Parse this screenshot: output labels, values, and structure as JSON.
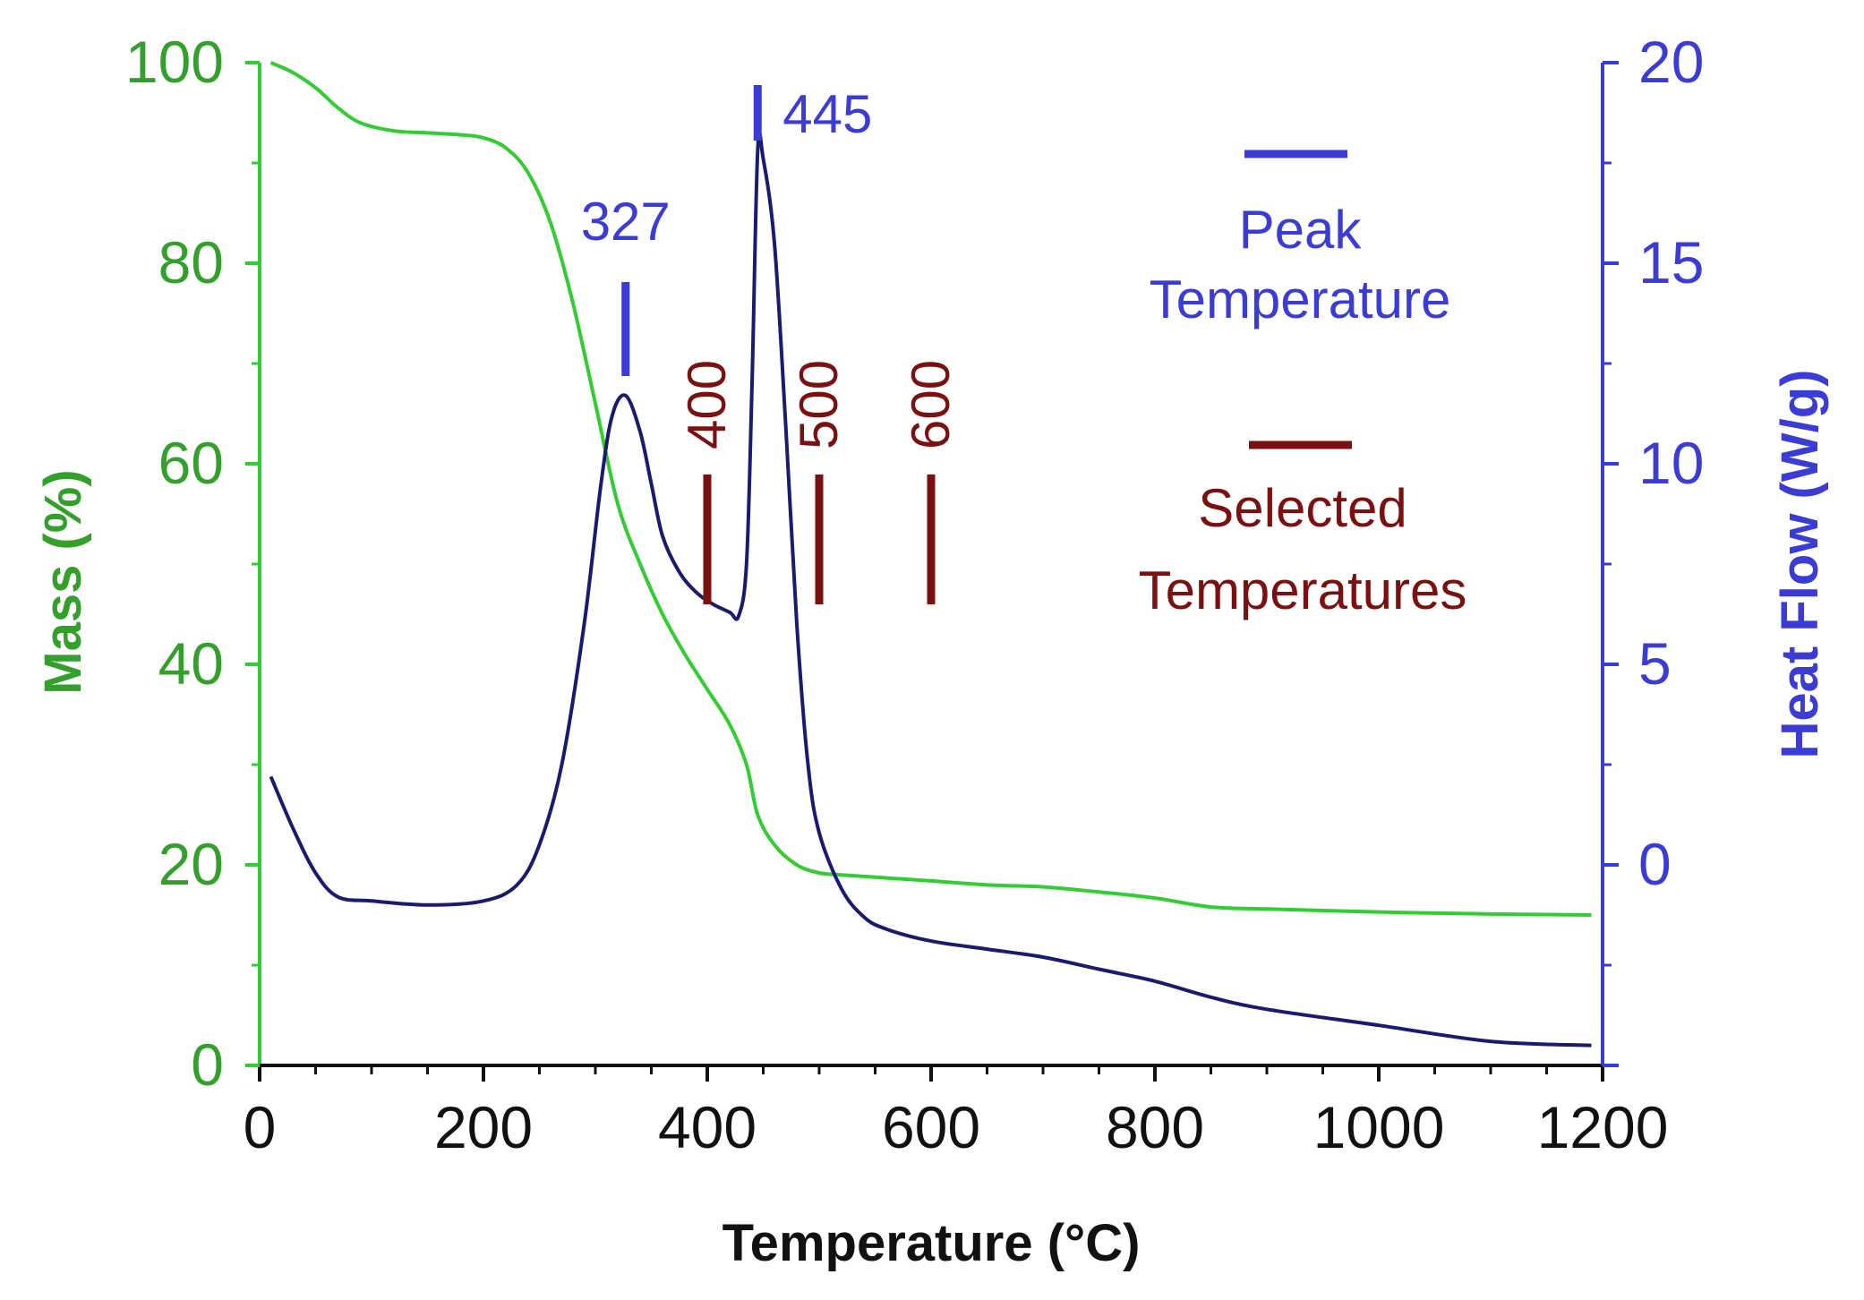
{
  "colors": {
    "mass": "#33cc33",
    "mass_label": "#33a02c",
    "heat": "#1a1a70",
    "heat_axis": "#3b3bd6",
    "peak": "#3b3bd6",
    "selected": "#7a1010",
    "axis": "#111111"
  },
  "chart_data": {
    "type": "line",
    "title": "",
    "xlabel": "Temperature (°C)",
    "ylabel_left": "Mass (%)",
    "ylabel_right": "Heat Flow (W/g)",
    "xlim": [
      0,
      1200
    ],
    "ylim_left": [
      0,
      100
    ],
    "ylim_right": [
      -5,
      20
    ],
    "x_ticks": [
      "0",
      "200",
      "400",
      "600",
      "800",
      "1000",
      "1200"
    ],
    "y_left_ticks": [
      "0",
      "20",
      "40",
      "60",
      "80",
      "100"
    ],
    "y_right_ticks": [
      "0",
      "5",
      "10",
      "15",
      "20"
    ],
    "series": [
      {
        "name": "Mass",
        "axis": "left",
        "x": [
          10,
          30,
          50,
          70,
          90,
          120,
          150,
          180,
          200,
          220,
          240,
          260,
          280,
          300,
          320,
          340,
          360,
          380,
          400,
          420,
          435,
          445,
          460,
          480,
          500,
          520,
          560,
          600,
          650,
          700,
          750,
          800,
          850,
          900,
          1000,
          1100,
          1190
        ],
        "y": [
          100,
          99,
          97.5,
          95.5,
          94,
          93.2,
          93,
          92.8,
          92.5,
          91.5,
          89,
          84,
          76,
          66,
          56,
          50,
          45,
          41,
          37.5,
          34,
          30,
          25,
          22,
          20,
          19.2,
          19,
          18.7,
          18.4,
          18,
          17.8,
          17.3,
          16.7,
          15.8,
          15.6,
          15.3,
          15.1,
          15
        ]
      },
      {
        "name": "Heat Flow",
        "axis": "right",
        "x": [
          10,
          30,
          50,
          70,
          100,
          150,
          200,
          230,
          250,
          270,
          290,
          305,
          315,
          327,
          340,
          350,
          360,
          375,
          390,
          405,
          420,
          428,
          435,
          440,
          445,
          450,
          460,
          470,
          480,
          490,
          500,
          520,
          540,
          560,
          600,
          650,
          700,
          750,
          800,
          850,
          900,
          1000,
          1100,
          1190
        ],
        "y": [
          2.2,
          0.9,
          -0.2,
          -0.8,
          -0.9,
          -1.0,
          -0.9,
          -0.5,
          0.5,
          2.5,
          6,
          9.5,
          11.2,
          11.7,
          10.8,
          9.5,
          8.2,
          7.3,
          6.8,
          6.5,
          6.3,
          6.2,
          7.5,
          12,
          17.8,
          17.6,
          15.5,
          11,
          6,
          2.5,
          0.8,
          -0.6,
          -1.3,
          -1.6,
          -1.9,
          -2.1,
          -2.3,
          -2.6,
          -2.9,
          -3.3,
          -3.6,
          -4.0,
          -4.4,
          -4.5
        ]
      }
    ],
    "annotations": {
      "peaks": [
        {
          "label": "327",
          "x": 327
        },
        {
          "label": "445",
          "x": 445
        }
      ],
      "selected": [
        {
          "label": "400",
          "x": 400
        },
        {
          "label": "500",
          "x": 500
        },
        {
          "label": "600",
          "x": 600
        }
      ]
    },
    "legend": {
      "position": "top-right",
      "peak_line1": "Peak",
      "peak_line2": "Temperature",
      "selected_line1": "Selected",
      "selected_line2": "Temperatures"
    }
  }
}
